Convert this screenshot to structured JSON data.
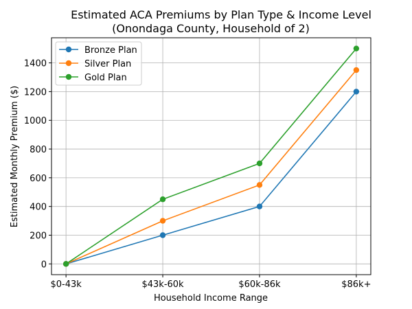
{
  "chart_data": {
    "type": "line",
    "title": "Estimated ACA Premiums by Plan Type & Income Level",
    "subtitle": "(Onondaga County, Household of 2)",
    "xlabel": "Household Income Range",
    "ylabel": "Estimated Monthly Premium ($)",
    "categories": [
      "$0-43k",
      "$43k-60k",
      "$60k-86k",
      "$86k+"
    ],
    "yticks": [
      0,
      200,
      400,
      600,
      800,
      1000,
      1200,
      1400
    ],
    "ylim": [
      -75,
      1575
    ],
    "grid": true,
    "legend_position": "top-left",
    "series": [
      {
        "name": "Bronze Plan",
        "color": "#1f77b4",
        "values": [
          0,
          200,
          400,
          1200
        ]
      },
      {
        "name": "Silver Plan",
        "color": "#ff7f0e",
        "values": [
          0,
          300,
          550,
          1350
        ]
      },
      {
        "name": "Gold Plan",
        "color": "#2ca02c",
        "values": [
          0,
          450,
          700,
          1500
        ]
      }
    ]
  }
}
